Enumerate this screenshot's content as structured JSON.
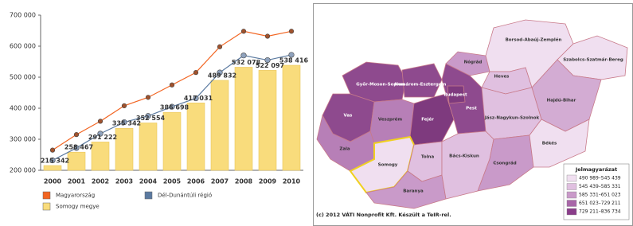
{
  "chart_data": {
    "type": "bar",
    "categories": [
      "2000",
      "2001",
      "2002",
      "2003",
      "2004",
      "2005",
      "2006",
      "2007",
      "2008",
      "2009",
      "2010"
    ],
    "ylim": [
      200000,
      700000
    ],
    "yticks": [
      {
        "value": 200000,
        "label": "200 000"
      },
      {
        "value": 300000,
        "label": "300 000"
      },
      {
        "value": 400000,
        "label": "400 000"
      },
      {
        "value": 500000,
        "label": "500 000"
      },
      {
        "value": 600000,
        "label": "600 000"
      },
      {
        "value": 700000,
        "label": "700 000"
      }
    ],
    "grid": false,
    "series": [
      {
        "name": "Magyarország",
        "type": "line",
        "color": "#f26522",
        "values": [
          265000,
          315000,
          358000,
          408000,
          435000,
          475000,
          515000,
          598000,
          648000,
          632000,
          648000
        ]
      },
      {
        "name": "Dél-Dunántúli régió",
        "type": "line",
        "color": "#5b7aa0",
        "values": [
          232000,
          272000,
          318000,
          355000,
          375000,
          405000,
          432000,
          515000,
          570000,
          555000,
          572000
        ]
      },
      {
        "name": "Somogy megye",
        "type": "bar",
        "color": "#f9dc7c",
        "values": [
          215342,
          258467,
          291222,
          335342,
          352554,
          386698,
          417031,
          489832,
          532078,
          522097,
          538416
        ],
        "value_labels": [
          "215 342",
          "258 467",
          "291 222",
          "335 342",
          "352 554",
          "386 698",
          "417 031",
          "489 832",
          "532 078",
          "522 097",
          "538 416"
        ]
      }
    ]
  },
  "map": {
    "counties": [
      {
        "label": "Győr-Moson-Sopron",
        "color": "#8e4a8e"
      },
      {
        "label": "Komárom-Esztergom",
        "color": "#8e4a8e"
      },
      {
        "label": "Vas",
        "color": "#8e4a8e"
      },
      {
        "label": "Veszprém",
        "color": "#b77fb7"
      },
      {
        "label": "Fejér",
        "color": "#7e3a7e"
      },
      {
        "label": "Pest",
        "color": "#8e4a8e"
      },
      {
        "label": "Budapest",
        "color": "#7e3a7e"
      },
      {
        "label": "Nógrád",
        "color": "#c99ac9"
      },
      {
        "label": "Borsod-Abaúj-Zemplén",
        "color": "#f0dff0"
      },
      {
        "label": "Heves",
        "color": "#e0c0e0"
      },
      {
        "label": "Szabolcs-Szatmár-Bereg",
        "color": "#f0dff0"
      },
      {
        "label": "Hajdú-Bihar",
        "color": "#d3acd3"
      },
      {
        "label": "Jász-Nagykun-Szolnok",
        "color": "#e0c0e0"
      },
      {
        "label": "Zala",
        "color": "#b77fb7"
      },
      {
        "label": "Somogy",
        "color": "#f0dff0"
      },
      {
        "label": "Tolna",
        "color": "#e0c0e0"
      },
      {
        "label": "Baranya",
        "color": "#c99ac9"
      },
      {
        "label": "Bács-Kiskun",
        "color": "#e0c0e0"
      },
      {
        "label": "Csongrád",
        "color": "#c99ac9"
      },
      {
        "label": "Békés",
        "color": "#f0dff0"
      }
    ],
    "legend": {
      "title": "Jelmagyarázat",
      "items": [
        {
          "label": "490 989–545 439",
          "color": "#f0dff0"
        },
        {
          "label": "545 439–585 331",
          "color": "#e0c0e0"
        },
        {
          "label": "585 331–651 023",
          "color": "#c99ac9"
        },
        {
          "label": "651 023–729 211",
          "color": "#a866a8"
        },
        {
          "label": "729 211–836 734",
          "color": "#8a3d8a"
        }
      ]
    },
    "footer": "(c) 2012 VÁTI Nonprofit Kft. Készült a TeIR-rel."
  }
}
